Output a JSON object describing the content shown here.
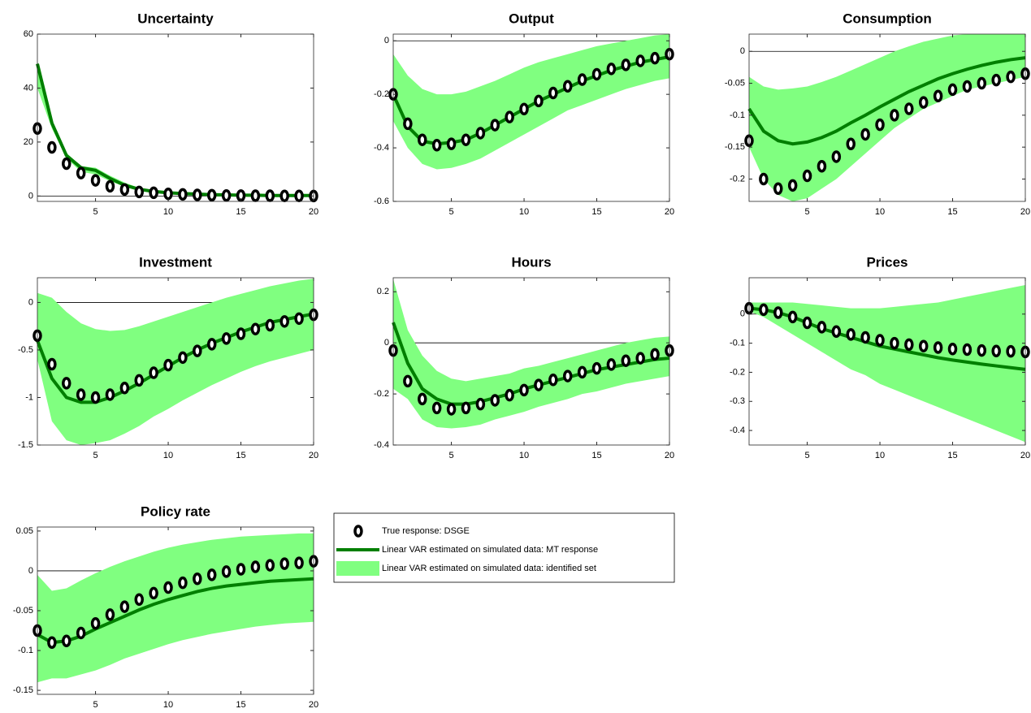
{
  "chart_data": [
    {
      "type": "line",
      "title": "Uncertainty",
      "x": [
        1,
        2,
        3,
        4,
        5,
        6,
        7,
        8,
        9,
        10,
        11,
        12,
        13,
        14,
        15,
        16,
        17,
        18,
        19,
        20
      ],
      "xlim": [
        1,
        20
      ],
      "xticks": [
        5,
        10,
        15,
        20
      ],
      "ylim": [
        -2,
        60
      ],
      "yticks": [
        0,
        20,
        40,
        60
      ],
      "hline": 0,
      "dsge": [
        25,
        18,
        12,
        8.5,
        5.8,
        3.6,
        2.4,
        1.5,
        1.2,
        0.8,
        0.6,
        0.4,
        0.3,
        0.2,
        0.15,
        0.1,
        0.1,
        0.05,
        0.05,
        0
      ],
      "mt": [
        49,
        27,
        15,
        10.5,
        9.5,
        6.5,
        4,
        2.5,
        1.7,
        1.2,
        0.9,
        0.7,
        0.5,
        0.4,
        0.3,
        0.3,
        0.2,
        0.2,
        0.2,
        0.2
      ],
      "band_low": [
        40,
        25,
        14,
        9,
        8,
        5.5,
        3.5,
        2,
        1.5,
        1,
        0.7,
        0.5,
        0.4,
        0.3,
        0.2,
        0.2,
        0.1,
        0.1,
        0.1,
        0.1
      ],
      "band_high": [
        50,
        28,
        16,
        11,
        10.5,
        7.5,
        5,
        3,
        2.2,
        1.6,
        1.2,
        1,
        0.8,
        0.7,
        0.6,
        0.5,
        0.5,
        0.5,
        0.5,
        0.5
      ]
    },
    {
      "type": "line",
      "title": "Output",
      "x": [
        1,
        2,
        3,
        4,
        5,
        6,
        7,
        8,
        9,
        10,
        11,
        12,
        13,
        14,
        15,
        16,
        17,
        18,
        19,
        20
      ],
      "xlim": [
        1,
        20
      ],
      "xticks": [
        5,
        10,
        15,
        20
      ],
      "ylim": [
        -0.6,
        0.025
      ],
      "yticks": [
        -0.6,
        -0.4,
        -0.2,
        0
      ],
      "hline": 0,
      "dsge": [
        -0.2,
        -0.31,
        -0.37,
        -0.39,
        -0.385,
        -0.37,
        -0.345,
        -0.315,
        -0.285,
        -0.255,
        -0.225,
        -0.195,
        -0.17,
        -0.145,
        -0.125,
        -0.105,
        -0.09,
        -0.075,
        -0.065,
        -0.05
      ],
      "mt": [
        -0.2,
        -0.32,
        -0.375,
        -0.385,
        -0.38,
        -0.37,
        -0.345,
        -0.315,
        -0.285,
        -0.255,
        -0.225,
        -0.2,
        -0.175,
        -0.15,
        -0.13,
        -0.11,
        -0.095,
        -0.08,
        -0.07,
        -0.06
      ],
      "band_low": [
        -0.3,
        -0.4,
        -0.46,
        -0.48,
        -0.475,
        -0.46,
        -0.44,
        -0.41,
        -0.38,
        -0.35,
        -0.32,
        -0.29,
        -0.26,
        -0.24,
        -0.22,
        -0.2,
        -0.18,
        -0.165,
        -0.15,
        -0.14
      ],
      "band_high": [
        -0.05,
        -0.13,
        -0.18,
        -0.2,
        -0.2,
        -0.19,
        -0.17,
        -0.15,
        -0.125,
        -0.1,
        -0.08,
        -0.065,
        -0.05,
        -0.035,
        -0.02,
        -0.01,
        0,
        0.01,
        0.02,
        0.025
      ]
    },
    {
      "type": "line",
      "title": "Consumption",
      "x": [
        1,
        2,
        3,
        4,
        5,
        6,
        7,
        8,
        9,
        10,
        11,
        12,
        13,
        14,
        15,
        16,
        17,
        18,
        19,
        20
      ],
      "xlim": [
        1,
        20
      ],
      "xticks": [
        5,
        10,
        15,
        20
      ],
      "ylim": [
        -0.235,
        0.027
      ],
      "yticks": [
        -0.2,
        -0.15,
        -0.1,
        -0.05,
        0
      ],
      "hline": 0,
      "dsge": [
        -0.14,
        -0.2,
        -0.215,
        -0.21,
        -0.195,
        -0.18,
        -0.165,
        -0.145,
        -0.13,
        -0.115,
        -0.1,
        -0.09,
        -0.08,
        -0.07,
        -0.06,
        -0.055,
        -0.05,
        -0.045,
        -0.04,
        -0.035
      ],
      "mt": [
        -0.09,
        -0.125,
        -0.14,
        -0.145,
        -0.142,
        -0.135,
        -0.125,
        -0.112,
        -0.1,
        -0.087,
        -0.075,
        -0.063,
        -0.053,
        -0.043,
        -0.035,
        -0.028,
        -0.022,
        -0.017,
        -0.013,
        -0.01
      ],
      "band_low": [
        -0.15,
        -0.2,
        -0.225,
        -0.235,
        -0.23,
        -0.215,
        -0.2,
        -0.18,
        -0.16,
        -0.14,
        -0.12,
        -0.105,
        -0.09,
        -0.08,
        -0.07,
        -0.06,
        -0.055,
        -0.05,
        -0.045,
        -0.04
      ],
      "band_high": [
        -0.04,
        -0.055,
        -0.06,
        -0.058,
        -0.055,
        -0.048,
        -0.04,
        -0.03,
        -0.02,
        -0.01,
        0,
        0.008,
        0.015,
        0.02,
        0.025,
        0.027,
        0.027,
        0.027,
        0.027,
        0.027
      ]
    },
    {
      "type": "line",
      "title": "Investment",
      "x": [
        1,
        2,
        3,
        4,
        5,
        6,
        7,
        8,
        9,
        10,
        11,
        12,
        13,
        14,
        15,
        16,
        17,
        18,
        19,
        20
      ],
      "xlim": [
        1,
        20
      ],
      "xticks": [
        5,
        10,
        15,
        20
      ],
      "ylim": [
        -1.5,
        0.26
      ],
      "yticks": [
        -1.5,
        -1,
        -0.5,
        0
      ],
      "hline": 0,
      "dsge": [
        -0.35,
        -0.65,
        -0.85,
        -0.97,
        -1,
        -0.97,
        -0.9,
        -0.82,
        -0.74,
        -0.66,
        -0.58,
        -0.51,
        -0.44,
        -0.38,
        -0.33,
        -0.28,
        -0.24,
        -0.2,
        -0.17,
        -0.13
      ],
      "mt": [
        -0.4,
        -0.8,
        -1,
        -1.05,
        -1.05,
        -1,
        -0.93,
        -0.85,
        -0.76,
        -0.67,
        -0.58,
        -0.5,
        -0.43,
        -0.37,
        -0.31,
        -0.26,
        -0.21,
        -0.18,
        -0.15,
        -0.12
      ],
      "band_low": [
        -0.6,
        -1.25,
        -1.45,
        -1.5,
        -1.48,
        -1.45,
        -1.38,
        -1.3,
        -1.2,
        -1.12,
        -1.03,
        -0.95,
        -0.87,
        -0.8,
        -0.73,
        -0.67,
        -0.62,
        -0.58,
        -0.54,
        -0.5
      ],
      "band_high": [
        0.1,
        0.05,
        -0.1,
        -0.22,
        -0.28,
        -0.3,
        -0.29,
        -0.25,
        -0.2,
        -0.15,
        -0.1,
        -0.05,
        0,
        0.05,
        0.09,
        0.13,
        0.17,
        0.2,
        0.23,
        0.25
      ]
    },
    {
      "type": "line",
      "title": "Hours",
      "x": [
        1,
        2,
        3,
        4,
        5,
        6,
        7,
        8,
        9,
        10,
        11,
        12,
        13,
        14,
        15,
        16,
        17,
        18,
        19,
        20
      ],
      "xlim": [
        1,
        20
      ],
      "xticks": [
        5,
        10,
        15,
        20
      ],
      "ylim": [
        -0.4,
        0.255
      ],
      "yticks": [
        -0.4,
        -0.2,
        0,
        0.2
      ],
      "hline": 0,
      "dsge": [
        -0.03,
        -0.15,
        -0.22,
        -0.255,
        -0.26,
        -0.255,
        -0.24,
        -0.225,
        -0.205,
        -0.185,
        -0.165,
        -0.145,
        -0.13,
        -0.115,
        -0.1,
        -0.085,
        -0.07,
        -0.06,
        -0.045,
        -0.03
      ],
      "mt": [
        0.08,
        -0.08,
        -0.18,
        -0.22,
        -0.24,
        -0.24,
        -0.23,
        -0.215,
        -0.2,
        -0.18,
        -0.165,
        -0.15,
        -0.135,
        -0.12,
        -0.105,
        -0.095,
        -0.085,
        -0.075,
        -0.065,
        -0.06
      ],
      "band_low": [
        -0.18,
        -0.22,
        -0.3,
        -0.33,
        -0.335,
        -0.33,
        -0.32,
        -0.3,
        -0.285,
        -0.27,
        -0.25,
        -0.235,
        -0.22,
        -0.2,
        -0.19,
        -0.175,
        -0.16,
        -0.15,
        -0.14,
        -0.13
      ],
      "band_high": [
        0.25,
        0.05,
        -0.05,
        -0.11,
        -0.14,
        -0.15,
        -0.14,
        -0.13,
        -0.12,
        -0.1,
        -0.09,
        -0.075,
        -0.06,
        -0.045,
        -0.03,
        -0.015,
        0,
        0.01,
        0.02,
        0.025
      ]
    },
    {
      "type": "line",
      "title": "Prices",
      "x": [
        1,
        2,
        3,
        4,
        5,
        6,
        7,
        8,
        9,
        10,
        11,
        12,
        13,
        14,
        15,
        16,
        17,
        18,
        19,
        20
      ],
      "xlim": [
        1,
        20
      ],
      "xticks": [
        5,
        10,
        15,
        20
      ],
      "ylim": [
        -0.45,
        0.125
      ],
      "yticks": [
        -0.4,
        -0.3,
        -0.2,
        -0.1,
        0
      ],
      "hline": 0,
      "dsge": [
        0.02,
        0.015,
        0.005,
        -0.01,
        -0.03,
        -0.045,
        -0.06,
        -0.07,
        -0.08,
        -0.09,
        -0.1,
        -0.105,
        -0.11,
        -0.115,
        -0.12,
        -0.122,
        -0.125,
        -0.127,
        -0.128,
        -0.13
      ],
      "mt": [
        0.02,
        0.015,
        0.005,
        -0.01,
        -0.03,
        -0.05,
        -0.065,
        -0.08,
        -0.095,
        -0.11,
        -0.12,
        -0.13,
        -0.14,
        -0.15,
        -0.158,
        -0.165,
        -0.172,
        -0.178,
        -0.184,
        -0.19
      ],
      "band_low": [
        0.01,
        -0.01,
        -0.04,
        -0.07,
        -0.1,
        -0.13,
        -0.16,
        -0.19,
        -0.21,
        -0.24,
        -0.26,
        -0.28,
        -0.3,
        -0.32,
        -0.34,
        -0.36,
        -0.38,
        -0.4,
        -0.42,
        -0.44
      ],
      "band_high": [
        0.04,
        0.04,
        0.04,
        0.04,
        0.035,
        0.03,
        0.025,
        0.02,
        0.02,
        0.02,
        0.025,
        0.03,
        0.035,
        0.04,
        0.05,
        0.06,
        0.07,
        0.08,
        0.09,
        0.1
      ]
    },
    {
      "type": "line",
      "title": "Policy rate",
      "x": [
        1,
        2,
        3,
        4,
        5,
        6,
        7,
        8,
        9,
        10,
        11,
        12,
        13,
        14,
        15,
        16,
        17,
        18,
        19,
        20
      ],
      "xlim": [
        1,
        20
      ],
      "xticks": [
        5,
        10,
        15,
        20
      ],
      "ylim": [
        -0.155,
        0.055
      ],
      "yticks": [
        -0.15,
        -0.1,
        -0.05,
        0,
        0.05
      ],
      "hline": 0,
      "dsge": [
        -0.075,
        -0.09,
        -0.088,
        -0.078,
        -0.066,
        -0.055,
        -0.045,
        -0.036,
        -0.028,
        -0.021,
        -0.015,
        -0.01,
        -0.005,
        -0.001,
        0.002,
        0.005,
        0.007,
        0.009,
        0.01,
        0.012
      ],
      "mt": [
        -0.08,
        -0.09,
        -0.088,
        -0.082,
        -0.073,
        -0.065,
        -0.057,
        -0.049,
        -0.042,
        -0.036,
        -0.031,
        -0.026,
        -0.022,
        -0.019,
        -0.017,
        -0.015,
        -0.013,
        -0.012,
        -0.011,
        -0.01
      ],
      "band_low": [
        -0.14,
        -0.135,
        -0.135,
        -0.13,
        -0.125,
        -0.118,
        -0.11,
        -0.104,
        -0.098,
        -0.092,
        -0.087,
        -0.083,
        -0.079,
        -0.076,
        -0.073,
        -0.07,
        -0.068,
        -0.066,
        -0.065,
        -0.064
      ],
      "band_high": [
        -0.005,
        -0.025,
        -0.022,
        -0.012,
        -0.003,
        0.005,
        0.012,
        0.018,
        0.024,
        0.029,
        0.033,
        0.036,
        0.039,
        0.041,
        0.043,
        0.044,
        0.045,
        0.046,
        0.047,
        0.047
      ]
    }
  ],
  "legend": {
    "entries": [
      {
        "name": "True response: DSGE",
        "color": "#000000"
      },
      {
        "name": "Linear VAR estimated on simulated data: MT response",
        "color": "#007f00"
      },
      {
        "name": "Linear VAR estimated on simulated data: identified set",
        "color": "#80ff80"
      }
    ]
  }
}
